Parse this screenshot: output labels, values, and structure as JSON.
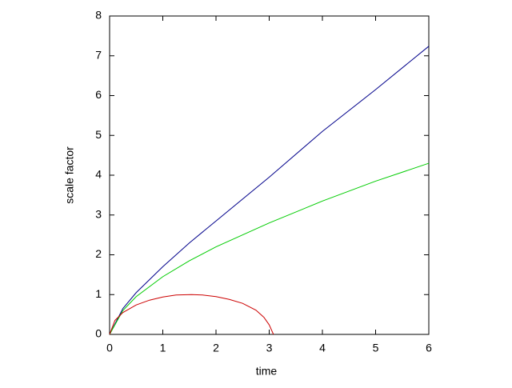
{
  "chart_data": {
    "type": "line",
    "xlabel": "time",
    "ylabel": "scale factor",
    "xlim": [
      0,
      6
    ],
    "ylim": [
      0,
      8
    ],
    "xticks": [
      0,
      1,
      2,
      3,
      4,
      5,
      6
    ],
    "yticks": [
      0,
      1,
      2,
      3,
      4,
      5,
      6,
      7,
      8
    ],
    "series": [
      {
        "color": "#00008b",
        "x": [
          0,
          0.25,
          0.5,
          1,
          1.5,
          2,
          3,
          4,
          5,
          6
        ],
        "values": [
          0,
          0.65,
          1.05,
          1.7,
          2.3,
          2.85,
          3.95,
          5.1,
          6.15,
          7.24
        ]
      },
      {
        "color": "#00cc00",
        "x": [
          0,
          0.25,
          0.5,
          1,
          1.5,
          2,
          3,
          4,
          5,
          6
        ],
        "values": [
          0,
          0.6,
          0.95,
          1.45,
          1.85,
          2.2,
          2.8,
          3.35,
          3.85,
          4.3
        ]
      },
      {
        "color": "#cc0000",
        "x": [
          0,
          0.1,
          0.25,
          0.5,
          0.75,
          1,
          1.25,
          1.54,
          1.75,
          2,
          2.25,
          2.5,
          2.75,
          2.9,
          3,
          3.08
        ],
        "values": [
          0,
          0.35,
          0.55,
          0.74,
          0.86,
          0.94,
          0.99,
          1,
          0.99,
          0.95,
          0.88,
          0.78,
          0.61,
          0.43,
          0.24,
          0
        ]
      }
    ]
  }
}
